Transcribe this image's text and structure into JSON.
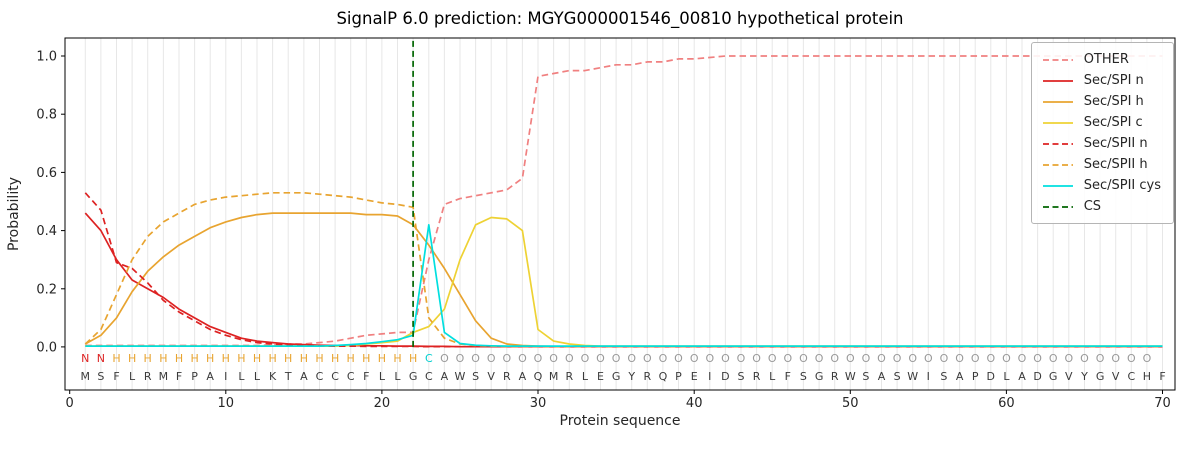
{
  "title": "SignalP 6.0 prediction: MGYG000001546_00810 hypothetical protein",
  "chart_data": {
    "type": "line",
    "xlabel": "Protein sequence",
    "ylabel": "Probability",
    "xlim": [
      -0.3,
      70.8
    ],
    "ylim": [
      -0.148,
      1.062
    ],
    "grid": "vertical-per-residue",
    "legend_position": "upper right",
    "xticks": [
      {
        "v": 0,
        "label": "0"
      },
      {
        "v": 10,
        "label": "10"
      },
      {
        "v": 20,
        "label": "20"
      },
      {
        "v": 30,
        "label": "30"
      },
      {
        "v": 40,
        "label": "40"
      },
      {
        "v": 50,
        "label": "50"
      },
      {
        "v": 60,
        "label": "60"
      },
      {
        "v": 70,
        "label": "70"
      }
    ],
    "yticks": [
      {
        "v": 0.0,
        "label": "0.0"
      },
      {
        "v": 0.2,
        "label": "0.2"
      },
      {
        "v": 0.4,
        "label": "0.4"
      },
      {
        "v": 0.6,
        "label": "0.6"
      },
      {
        "v": 0.8,
        "label": "0.8"
      },
      {
        "v": 1.0,
        "label": "1.0"
      }
    ],
    "x": [
      1,
      2,
      3,
      4,
      5,
      6,
      7,
      8,
      9,
      10,
      11,
      12,
      13,
      14,
      15,
      16,
      17,
      18,
      19,
      20,
      21,
      22,
      23,
      24,
      25,
      26,
      27,
      28,
      29,
      30,
      31,
      32,
      33,
      34,
      35,
      36,
      37,
      38,
      39,
      40,
      41,
      42,
      43,
      44,
      45,
      46,
      47,
      48,
      49,
      50,
      51,
      52,
      53,
      54,
      55,
      56,
      57,
      58,
      59,
      60,
      61,
      62,
      63,
      64,
      65,
      66,
      67,
      68,
      69,
      70
    ],
    "series": [
      {
        "name": "OTHER",
        "color": "#f08080",
        "dash": true,
        "values": [
          0.005,
          0.005,
          0.005,
          0.005,
          0.005,
          0.005,
          0.005,
          0.005,
          0.005,
          0.005,
          0.005,
          0.005,
          0.007,
          0.01,
          0.01,
          0.015,
          0.02,
          0.03,
          0.04,
          0.045,
          0.05,
          0.05,
          0.3,
          0.49,
          0.51,
          0.52,
          0.53,
          0.54,
          0.58,
          0.93,
          0.94,
          0.95,
          0.95,
          0.96,
          0.97,
          0.97,
          0.98,
          0.98,
          0.99,
          0.99,
          0.995,
          1.0,
          1.0,
          1.0,
          1.0,
          1.0,
          1.0,
          1.0,
          1.0,
          1.0,
          1.0,
          1.0,
          1.0,
          1.0,
          1.0,
          1.0,
          1.0,
          1.0,
          1.0,
          1.0,
          1.0,
          1.0,
          1.0,
          1.0,
          1.0,
          1.0,
          1.0,
          1.0,
          1.0,
          1.0
        ]
      },
      {
        "name": "Sec/SPI n",
        "color": "#dd2222",
        "dash": false,
        "values": [
          0.46,
          0.4,
          0.3,
          0.23,
          0.2,
          0.17,
          0.13,
          0.1,
          0.07,
          0.05,
          0.03,
          0.02,
          0.015,
          0.01,
          0.008,
          0.006,
          0.005,
          0.005,
          0.004,
          0.004,
          0.003,
          0.003,
          0.002,
          0.002,
          0.001,
          0.001,
          0.001,
          0.001,
          0.001,
          0.001,
          0.001,
          0.001,
          0.001,
          0.001,
          0.001,
          0.001,
          0.001,
          0.001,
          0.001,
          0.001,
          0.001,
          0.001,
          0.001,
          0.001,
          0.001,
          0.001,
          0.001,
          0.001,
          0.001,
          0.001,
          0.001,
          0.001,
          0.001,
          0.001,
          0.001,
          0.001,
          0.001,
          0.001,
          0.001,
          0.001,
          0.001,
          0.001,
          0.001,
          0.001,
          0.001,
          0.001,
          0.001,
          0.001,
          0.001,
          0.001
        ]
      },
      {
        "name": "Sec/SPI h",
        "color": "#e8a430",
        "dash": false,
        "values": [
          0.01,
          0.04,
          0.1,
          0.19,
          0.26,
          0.31,
          0.35,
          0.38,
          0.41,
          0.43,
          0.445,
          0.455,
          0.46,
          0.46,
          0.46,
          0.46,
          0.46,
          0.46,
          0.455,
          0.455,
          0.45,
          0.42,
          0.35,
          0.27,
          0.18,
          0.09,
          0.03,
          0.01,
          0.005,
          0.003,
          0.002,
          0.002,
          0.002,
          0.002,
          0.002,
          0.002,
          0.002,
          0.002,
          0.002,
          0.002,
          0.002,
          0.002,
          0.002,
          0.002,
          0.002,
          0.002,
          0.002,
          0.002,
          0.002,
          0.002,
          0.002,
          0.002,
          0.002,
          0.002,
          0.002,
          0.002,
          0.002,
          0.002,
          0.002,
          0.002,
          0.002,
          0.002,
          0.002,
          0.002,
          0.002,
          0.002,
          0.002,
          0.002,
          0.002,
          0.002
        ]
      },
      {
        "name": "Sec/SPI c",
        "color": "#eed234",
        "dash": false,
        "values": [
          0.003,
          0.003,
          0.003,
          0.003,
          0.003,
          0.003,
          0.003,
          0.003,
          0.003,
          0.003,
          0.003,
          0.003,
          0.003,
          0.003,
          0.003,
          0.003,
          0.003,
          0.005,
          0.01,
          0.015,
          0.02,
          0.05,
          0.07,
          0.13,
          0.3,
          0.42,
          0.445,
          0.44,
          0.4,
          0.06,
          0.02,
          0.01,
          0.005,
          0.003,
          0.003,
          0.003,
          0.003,
          0.003,
          0.003,
          0.003,
          0.003,
          0.003,
          0.003,
          0.003,
          0.003,
          0.003,
          0.003,
          0.003,
          0.003,
          0.003,
          0.003,
          0.003,
          0.003,
          0.003,
          0.003,
          0.003,
          0.003,
          0.003,
          0.003,
          0.003,
          0.003,
          0.003,
          0.003,
          0.003,
          0.003,
          0.003,
          0.003,
          0.003,
          0.003,
          0.003
        ]
      },
      {
        "name": "Sec/SPII n",
        "color": "#dd2222",
        "dash": true,
        "values": [
          0.53,
          0.47,
          0.29,
          0.27,
          0.22,
          0.16,
          0.12,
          0.09,
          0.06,
          0.04,
          0.025,
          0.015,
          0.01,
          0.007,
          0.005,
          0.004,
          0.003,
          0.003,
          0.002,
          0.002,
          0.002,
          0.002,
          0.001,
          0.001,
          0.001,
          0.001,
          0.001,
          0.001,
          0.001,
          0.001,
          0.001,
          0.001,
          0.001,
          0.001,
          0.001,
          0.001,
          0.001,
          0.001,
          0.001,
          0.001,
          0.001,
          0.001,
          0.001,
          0.001,
          0.001,
          0.001,
          0.001,
          0.001,
          0.001,
          0.001,
          0.001,
          0.001,
          0.001,
          0.001,
          0.001,
          0.001,
          0.001,
          0.001,
          0.001,
          0.001,
          0.001,
          0.001,
          0.001,
          0.001,
          0.001,
          0.001,
          0.001,
          0.001,
          0.001,
          0.001
        ]
      },
      {
        "name": "Sec/SPII h",
        "color": "#e8a430",
        "dash": true,
        "values": [
          0.01,
          0.06,
          0.18,
          0.3,
          0.38,
          0.43,
          0.46,
          0.49,
          0.505,
          0.515,
          0.52,
          0.525,
          0.53,
          0.53,
          0.53,
          0.525,
          0.52,
          0.515,
          0.505,
          0.495,
          0.49,
          0.48,
          0.1,
          0.03,
          0.01,
          0.005,
          0.003,
          0.002,
          0.002,
          0.002,
          0.002,
          0.002,
          0.002,
          0.002,
          0.002,
          0.002,
          0.002,
          0.002,
          0.002,
          0.002,
          0.002,
          0.002,
          0.002,
          0.002,
          0.002,
          0.002,
          0.002,
          0.002,
          0.002,
          0.002,
          0.002,
          0.002,
          0.002,
          0.002,
          0.002,
          0.002,
          0.002,
          0.002,
          0.002,
          0.002,
          0.002,
          0.002,
          0.002,
          0.002,
          0.002,
          0.002,
          0.002,
          0.002,
          0.002,
          0.002
        ]
      },
      {
        "name": "Sec/SPII cys",
        "color": "#00dfdf",
        "dash": false,
        "values": [
          0.003,
          0.003,
          0.003,
          0.003,
          0.003,
          0.003,
          0.003,
          0.003,
          0.003,
          0.003,
          0.003,
          0.003,
          0.003,
          0.003,
          0.003,
          0.003,
          0.005,
          0.008,
          0.012,
          0.018,
          0.025,
          0.04,
          0.42,
          0.05,
          0.012,
          0.006,
          0.004,
          0.003,
          0.003,
          0.003,
          0.003,
          0.003,
          0.003,
          0.003,
          0.003,
          0.003,
          0.003,
          0.003,
          0.003,
          0.003,
          0.003,
          0.003,
          0.003,
          0.003,
          0.003,
          0.003,
          0.003,
          0.003,
          0.003,
          0.003,
          0.003,
          0.003,
          0.003,
          0.003,
          0.003,
          0.003,
          0.003,
          0.003,
          0.003,
          0.003,
          0.003,
          0.003,
          0.003,
          0.003,
          0.003,
          0.003,
          0.003,
          0.003,
          0.003,
          0.003
        ]
      }
    ],
    "cs": {
      "name": "CS",
      "x": 22,
      "color": "#006400",
      "dash": true
    },
    "sequence": "MSFLRMFPAILLKTACCCFLLGCAWSVRAQMRLEGYRQPEIDSRLFSGRWSASWISAPDLADGVYGVCHF",
    "region_labels": "NNHHHHHHHHHHHHHHHHHHHHCOOOOOOOOOOOOOOOOOOOOOOOOOOOOOOOOOOOOOOOOOOOOOO",
    "label_colors": {
      "N": "#dd2222",
      "H": "#e8a430",
      "C": "#00cfcf",
      "O": "#999999"
    },
    "colors": {
      "grid": "#e7e7e7",
      "sequence": "#3a3a3a",
      "frame": "#000000",
      "tick_text": "#262626"
    }
  }
}
